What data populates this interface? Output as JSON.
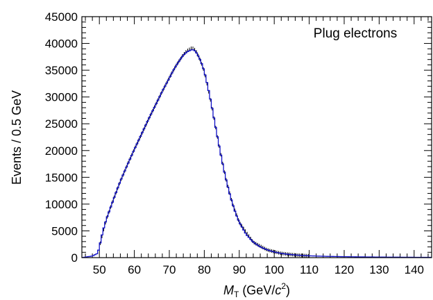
{
  "chart_data": {
    "type": "line",
    "legend_text": "Plug electrons",
    "xlabel": {
      "var": "M",
      "sub": "T",
      "pre_unit": " (GeV/",
      "unit_c": "c",
      "sup": "2",
      "post": ")"
    },
    "ylabel": "Events / 0.5 GeV",
    "xlim": [
      45,
      145
    ],
    "ylim": [
      0,
      45000
    ],
    "x_ticks": [
      50,
      60,
      70,
      80,
      90,
      100,
      110,
      120,
      130,
      140
    ],
    "y_ticks": [
      0,
      5000,
      10000,
      15000,
      20000,
      25000,
      30000,
      35000,
      40000,
      45000
    ],
    "bin_width": 0.5,
    "series": [
      {
        "role": "model",
        "color": "#1010c8",
        "x": [
          45,
          48,
          49.5,
          50,
          51,
          52,
          53,
          54,
          55,
          56,
          58,
          60,
          62,
          64,
          66,
          68,
          70,
          71,
          72,
          73,
          74,
          75,
          76,
          76.5,
          77,
          77.5,
          78,
          79,
          80,
          81,
          82,
          83,
          84,
          85,
          86,
          87,
          88,
          89,
          90,
          92,
          94,
          96,
          98,
          100,
          102,
          104,
          106,
          108,
          110,
          115,
          120,
          125,
          130,
          135,
          140,
          145
        ],
        "y": [
          0,
          300,
          800,
          2000,
          5000,
          7200,
          9000,
          10800,
          12600,
          14300,
          17300,
          20200,
          23000,
          25800,
          28400,
          31100,
          33500,
          34800,
          35900,
          36900,
          37800,
          38400,
          38700,
          38850,
          38800,
          38500,
          38000,
          36700,
          34800,
          32000,
          28800,
          25200,
          21700,
          18300,
          15200,
          12500,
          10200,
          8200,
          6600,
          4300,
          2900,
          2000,
          1450,
          1050,
          800,
          620,
          500,
          410,
          340,
          240,
          180,
          140,
          110,
          90,
          70,
          60
        ]
      },
      {
        "role": "data",
        "color": "#000000",
        "x": [
          50,
          52,
          54,
          56,
          58,
          60,
          62,
          64,
          66,
          68,
          70,
          72,
          74,
          75,
          76,
          76.5,
          77,
          77.5,
          78,
          79,
          80,
          82,
          84,
          86,
          88,
          90,
          94,
          98,
          102,
          106,
          110
        ],
        "y": [
          2050,
          7150,
          10850,
          14250,
          17350,
          20250,
          22950,
          25750,
          28450,
          31050,
          33600,
          35950,
          37900,
          38600,
          39000,
          39200,
          39000,
          38700,
          38100,
          36650,
          34750,
          28700,
          21650,
          15150,
          10200,
          6580,
          2880,
          1440,
          790,
          500,
          340
        ]
      }
    ]
  }
}
